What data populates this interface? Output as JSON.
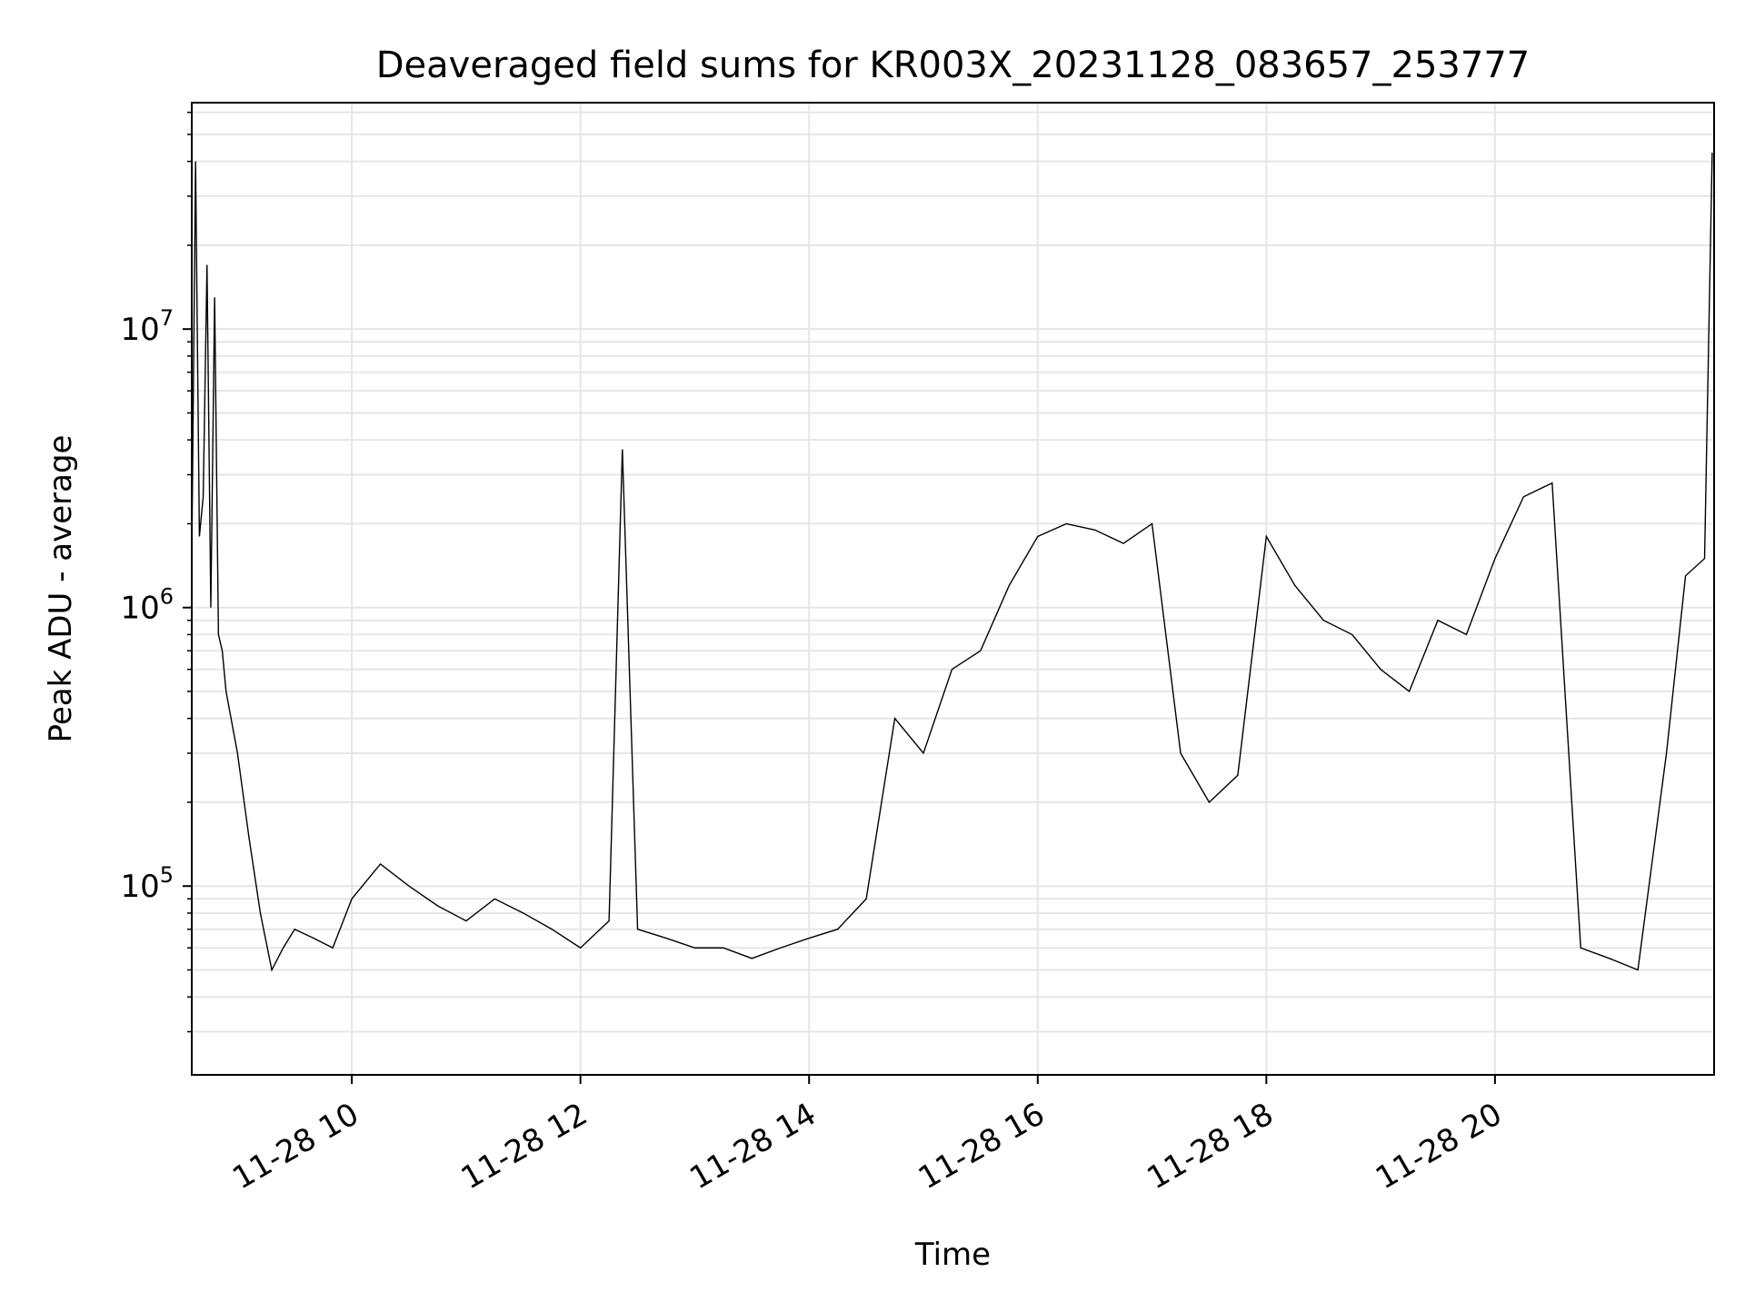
{
  "chart_data": {
    "type": "line",
    "title": "Deaveraged field sums for KR003X_20231128_083657_253777",
    "xlabel": "Time",
    "ylabel": "Peak ADU - average",
    "xlim": [
      "2023-11-28 08:36",
      "2023-11-28 21:55"
    ],
    "ylim": [
      21000,
      65000000
    ],
    "yscale": "log",
    "grid": true,
    "line_color": "#000000",
    "x_ticks": [
      {
        "value": "2023-11-28 10:00",
        "label": "11-28 10"
      },
      {
        "value": "2023-11-28 12:00",
        "label": "11-28 12"
      },
      {
        "value": "2023-11-28 14:00",
        "label": "11-28 14"
      },
      {
        "value": "2023-11-28 16:00",
        "label": "11-28 16"
      },
      {
        "value": "2023-11-28 18:00",
        "label": "11-28 18"
      },
      {
        "value": "2023-11-28 20:00",
        "label": "11-28 20"
      }
    ],
    "y_ticks": [
      {
        "value": 100000,
        "base": "10",
        "exp": "5"
      },
      {
        "value": 1000000,
        "base": "10",
        "exp": "6"
      },
      {
        "value": 10000000,
        "base": "10",
        "exp": "7"
      }
    ],
    "series": [
      {
        "values_note_omitted": false,
        "x": [
          "2023-11-28 08:36",
          "2023-11-28 08:38",
          "2023-11-28 08:40",
          "2023-11-28 08:42",
          "2023-11-28 08:44",
          "2023-11-28 08:46",
          "2023-11-28 08:48",
          "2023-11-28 08:50",
          "2023-11-28 08:52",
          "2023-11-28 08:54",
          "2023-11-28 09:00",
          "2023-11-28 09:06",
          "2023-11-28 09:12",
          "2023-11-28 09:18",
          "2023-11-28 09:24",
          "2023-11-28 09:30",
          "2023-11-28 09:40",
          "2023-11-28 09:50",
          "2023-11-28 10:00",
          "2023-11-28 10:15",
          "2023-11-28 10:30",
          "2023-11-28 10:45",
          "2023-11-28 11:00",
          "2023-11-28 11:15",
          "2023-11-28 11:30",
          "2023-11-28 11:45",
          "2023-11-28 12:00",
          "2023-11-28 12:15",
          "2023-11-28 12:22",
          "2023-11-28 12:30",
          "2023-11-28 12:45",
          "2023-11-28 13:00",
          "2023-11-28 13:15",
          "2023-11-28 13:30",
          "2023-11-28 13:45",
          "2023-11-28 14:00",
          "2023-11-28 14:15",
          "2023-11-28 14:30",
          "2023-11-28 14:45",
          "2023-11-28 15:00",
          "2023-11-28 15:15",
          "2023-11-28 15:30",
          "2023-11-28 15:45",
          "2023-11-28 16:00",
          "2023-11-28 16:15",
          "2023-11-28 16:30",
          "2023-11-28 16:45",
          "2023-11-28 17:00",
          "2023-11-28 17:15",
          "2023-11-28 17:30",
          "2023-11-28 17:45",
          "2023-11-28 18:00",
          "2023-11-28 18:15",
          "2023-11-28 18:30",
          "2023-11-28 18:45",
          "2023-11-28 19:00",
          "2023-11-28 19:15",
          "2023-11-28 19:30",
          "2023-11-28 19:45",
          "2023-11-28 20:00",
          "2023-11-28 20:15",
          "2023-11-28 20:30",
          "2023-11-28 20:45",
          "2023-11-28 21:00",
          "2023-11-28 21:15",
          "2023-11-28 21:30",
          "2023-11-28 21:40",
          "2023-11-28 21:50",
          "2023-11-28 21:54"
        ],
        "values": [
          1500000,
          40000000,
          1800000,
          2500000,
          17000000,
          1000000,
          13000000,
          800000,
          700000,
          500000,
          300000,
          150000,
          80000,
          50000,
          60000,
          70000,
          65000,
          60000,
          90000,
          120000,
          100000,
          85000,
          75000,
          90000,
          80000,
          70000,
          60000,
          75000,
          3700000,
          70000,
          65000,
          60000,
          60000,
          55000,
          60000,
          65000,
          70000,
          90000,
          400000,
          300000,
          600000,
          700000,
          1200000,
          1800000,
          2000000,
          1900000,
          1700000,
          2000000,
          300000,
          200000,
          250000,
          1800000,
          1200000,
          900000,
          800000,
          600000,
          500000,
          900000,
          800000,
          1500000,
          2500000,
          2800000,
          60000,
          55000,
          50000,
          300000,
          1300000,
          1500000,
          43000000
        ]
      }
    ]
  }
}
